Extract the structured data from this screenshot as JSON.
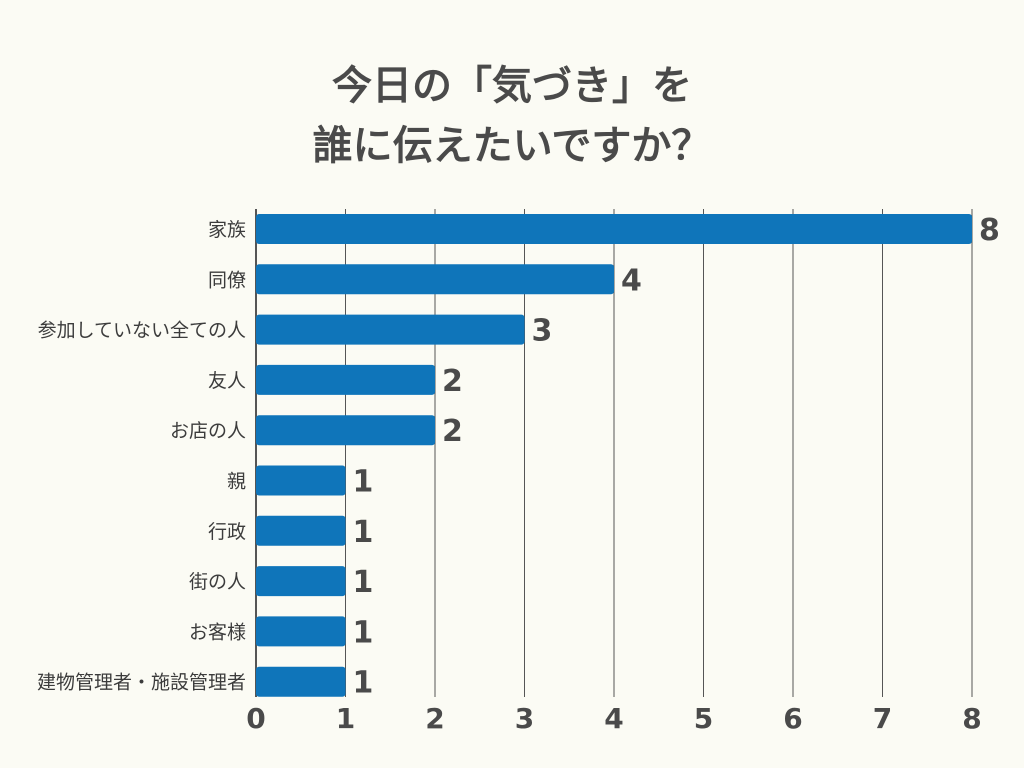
{
  "chart_data": {
    "type": "bar",
    "orientation": "horizontal",
    "title_lines": [
      "今日の「気づき」を",
      "誰に伝えたいですか？"
    ],
    "categories": [
      "家族",
      "同僚",
      "参加していない全ての人",
      "友人",
      "お店の人",
      "親",
      "行政",
      "街の人",
      "お客様",
      "建物管理者・施設管理者"
    ],
    "values": [
      8,
      4,
      3,
      2,
      2,
      1,
      1,
      1,
      1,
      1
    ],
    "value_labels": [
      "8",
      "4",
      "3",
      "2",
      "2",
      "1",
      "1",
      "1",
      "1",
      "1"
    ],
    "x_ticks": [
      "0",
      "1",
      "2",
      "3",
      "4",
      "5",
      "6",
      "7",
      "8"
    ],
    "xlim": [
      0,
      8
    ],
    "grid": "vertical",
    "bar_color": "#0f75ba"
  },
  "colors": {
    "background": "#fbfbf4",
    "bar": "#0f75ba",
    "grid": "#555555",
    "text": "#4a4a4a"
  }
}
